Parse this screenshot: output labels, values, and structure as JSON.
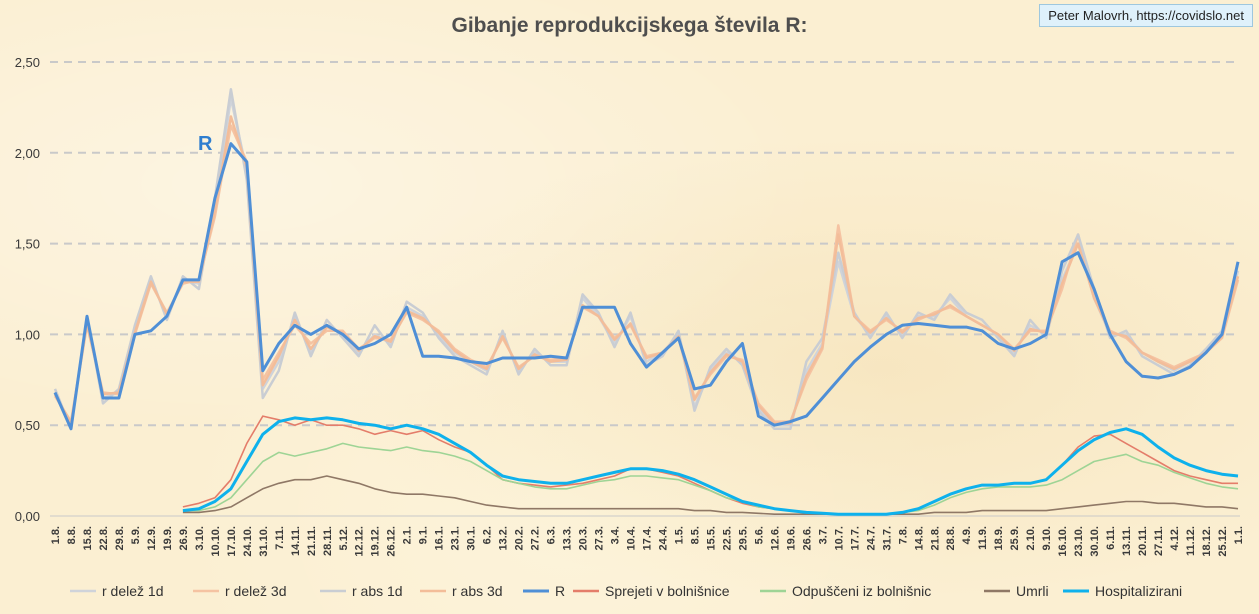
{
  "title": "Gibanje reprodukcijskega števila R:",
  "credit": "Peter Malovrh, https://covidslo.net",
  "colors": {
    "r_delez_1d": "#cfd3da",
    "r_delez_3d": "#f5c3a2",
    "r_abs_1d": "#c9cdd3",
    "r_abs_3d": "#f3bd99",
    "R": "#4f8fd6",
    "sprejeti": "#e47d6a",
    "odpusceni": "#9ed495",
    "umrli": "#8f7866",
    "hospitalizirani": "#0eb1ec"
  },
  "chart_data": {
    "type": "line",
    "title": "Gibanje reprodukcijskega števila R:",
    "ylim": [
      0,
      2.5
    ],
    "yticks": [
      "0,00",
      "0,50",
      "1,00",
      "1,50",
      "2,00",
      "2,50"
    ],
    "grid": "horizontal dashed",
    "legend_position": "bottom",
    "annotation": "R",
    "categories": [
      "1.8.",
      "8.8.",
      "15.8.",
      "22.8.",
      "29.8.",
      "5.9.",
      "12.9.",
      "19.9.",
      "26.9.",
      "3.10.",
      "10.10.",
      "17.10.",
      "24.10.",
      "31.10.",
      "7.11.",
      "14.11.",
      "21.11.",
      "28.11.",
      "5.12.",
      "12.12.",
      "19.12.",
      "26.12.",
      "2.1.",
      "9.1.",
      "16.1.",
      "23.1.",
      "30.1.",
      "6.2.",
      "13.2.",
      "20.2.",
      "27.2.",
      "6.3.",
      "13.3.",
      "20.3.",
      "27.3.",
      "3.4.",
      "10.4.",
      "17.4.",
      "24.4.",
      "1.5.",
      "8.5.",
      "15.5.",
      "22.5.",
      "29.5.",
      "5.6.",
      "12.6.",
      "19.6.",
      "26.6.",
      "3.7.",
      "10.7.",
      "17.7.",
      "24.7.",
      "31.7.",
      "7.8.",
      "14.8.",
      "21.8.",
      "28.8.",
      "4.9.",
      "11.9.",
      "18.9.",
      "25.9.",
      "2.10.",
      "9.10.",
      "16.10.",
      "23.10.",
      "30.10.",
      "6.11.",
      "13.11.",
      "20.11.",
      "27.11.",
      "4.12.",
      "11.12.",
      "18.12.",
      "25.12.",
      "1.1."
    ],
    "series": [
      {
        "name": "r delež 1d",
        "key": "r_delez_1d",
        "values": [
          0.68,
          0.5,
          1.08,
          0.65,
          0.68,
          1.02,
          1.3,
          1.1,
          1.3,
          1.28,
          1.7,
          2.3,
          1.9,
          0.7,
          0.85,
          1.1,
          0.9,
          1.05,
          1.0,
          0.9,
          1.0,
          0.95,
          1.15,
          1.1,
          1.0,
          0.9,
          0.85,
          0.8,
          1.0,
          0.8,
          0.9,
          0.85,
          0.85,
          1.2,
          1.1,
          0.95,
          1.1,
          0.85,
          0.9,
          1.0,
          0.6,
          0.8,
          0.9,
          0.85,
          0.6,
          0.5,
          0.5,
          0.8,
          0.95,
          1.4,
          1.1,
          1.0,
          1.1,
          1.0,
          1.1,
          1.1,
          1.2,
          1.1,
          1.05,
          1.0,
          0.9,
          1.05,
          1.0,
          1.3,
          1.5,
          1.2,
          1.0,
          1.0,
          0.9,
          0.85,
          0.8,
          0.85,
          0.9,
          1.0,
          1.35
        ]
      },
      {
        "name": "r delež 3d",
        "key": "r_delez_3d",
        "values": [
          0.66,
          0.52,
          1.05,
          0.68,
          0.67,
          1.0,
          1.28,
          1.12,
          1.28,
          1.3,
          1.65,
          2.15,
          1.95,
          0.75,
          0.9,
          1.05,
          0.95,
          1.02,
          1.02,
          0.92,
          0.98,
          0.97,
          1.12,
          1.08,
          1.02,
          0.92,
          0.86,
          0.82,
          0.98,
          0.82,
          0.88,
          0.86,
          0.87,
          1.15,
          1.1,
          0.98,
          1.05,
          0.88,
          0.9,
          0.98,
          0.65,
          0.78,
          0.88,
          0.86,
          0.62,
          0.52,
          0.52,
          0.75,
          0.92,
          1.6,
          1.1,
          1.02,
          1.08,
          1.02,
          1.08,
          1.12,
          1.15,
          1.1,
          1.05,
          1.0,
          0.92,
          1.02,
          1.02,
          1.25,
          1.55,
          1.2,
          1.02,
          0.98,
          0.9,
          0.86,
          0.82,
          0.86,
          0.9,
          0.98,
          1.3
        ]
      },
      {
        "name": "r abs 1d",
        "key": "r_abs_1d",
        "values": [
          0.7,
          0.48,
          1.1,
          0.62,
          0.7,
          1.05,
          1.32,
          1.08,
          1.32,
          1.25,
          1.75,
          2.35,
          1.85,
          0.65,
          0.8,
          1.12,
          0.88,
          1.08,
          0.98,
          0.88,
          1.05,
          0.93,
          1.18,
          1.12,
          0.98,
          0.88,
          0.83,
          0.78,
          1.02,
          0.78,
          0.92,
          0.83,
          0.83,
          1.22,
          1.12,
          0.93,
          1.12,
          0.83,
          0.88,
          1.02,
          0.58,
          0.82,
          0.92,
          0.83,
          0.58,
          0.48,
          0.48,
          0.85,
          0.98,
          1.45,
          1.12,
          0.98,
          1.12,
          0.98,
          1.12,
          1.08,
          1.22,
          1.12,
          1.08,
          0.98,
          0.88,
          1.08,
          0.98,
          1.35,
          1.55,
          1.25,
          0.98,
          1.02,
          0.88,
          0.83,
          0.78,
          0.83,
          0.92,
          1.02,
          1.4
        ]
      },
      {
        "name": "r abs 3d",
        "key": "r_abs_3d",
        "values": [
          0.67,
          0.51,
          1.06,
          0.67,
          0.68,
          1.01,
          1.29,
          1.11,
          1.29,
          1.29,
          1.68,
          2.2,
          1.92,
          0.72,
          0.88,
          1.08,
          0.92,
          1.04,
          1.01,
          0.91,
          0.99,
          0.96,
          1.13,
          1.09,
          1.01,
          0.91,
          0.85,
          0.81,
          0.99,
          0.81,
          0.89,
          0.85,
          0.86,
          1.16,
          1.1,
          0.97,
          1.06,
          0.87,
          0.9,
          0.99,
          0.64,
          0.79,
          0.89,
          0.85,
          0.61,
          0.51,
          0.51,
          0.77,
          0.93,
          1.55,
          1.1,
          1.01,
          1.09,
          1.01,
          1.09,
          1.11,
          1.16,
          1.1,
          1.05,
          1.0,
          0.91,
          1.03,
          1.01,
          1.28,
          1.5,
          1.2,
          1.01,
          0.99,
          0.9,
          0.85,
          0.81,
          0.85,
          0.9,
          0.99,
          1.32
        ]
      },
      {
        "name": "R",
        "key": "R",
        "values": [
          0.68,
          0.48,
          1.1,
          0.65,
          0.65,
          1.0,
          1.02,
          1.1,
          1.3,
          1.3,
          1.75,
          2.05,
          1.95,
          0.8,
          0.95,
          1.05,
          1.0,
          1.05,
          1.0,
          0.92,
          0.95,
          1.0,
          1.15,
          0.88,
          0.88,
          0.87,
          0.85,
          0.84,
          0.87,
          0.87,
          0.87,
          0.88,
          0.87,
          1.15,
          1.15,
          1.15,
          0.95,
          0.82,
          0.9,
          0.98,
          0.7,
          0.72,
          0.85,
          0.95,
          0.55,
          0.5,
          0.52,
          0.55,
          0.65,
          0.75,
          0.85,
          0.93,
          1.0,
          1.05,
          1.06,
          1.05,
          1.04,
          1.04,
          1.02,
          0.95,
          0.92,
          0.95,
          1.0,
          1.4,
          1.45,
          1.25,
          1.0,
          0.85,
          0.77,
          0.76,
          0.78,
          0.82,
          0.9,
          1.0,
          1.4
        ]
      },
      {
        "name": "Sprejeti v bolnišnice",
        "key": "sprejeti",
        "values": [
          null,
          null,
          null,
          null,
          null,
          null,
          null,
          null,
          0.05,
          0.07,
          0.1,
          0.2,
          0.4,
          0.55,
          0.53,
          0.5,
          0.53,
          0.5,
          0.5,
          0.48,
          0.45,
          0.47,
          0.45,
          0.47,
          0.42,
          0.38,
          0.35,
          0.28,
          0.2,
          0.18,
          0.17,
          0.16,
          0.17,
          0.18,
          0.2,
          0.22,
          0.26,
          0.26,
          0.24,
          0.22,
          0.18,
          0.14,
          0.1,
          0.07,
          0.05,
          0.04,
          0.03,
          0.02,
          0.015,
          0.01,
          0.01,
          0.01,
          0.01,
          0.02,
          0.04,
          0.08,
          0.12,
          0.15,
          0.17,
          0.17,
          0.18,
          0.18,
          0.2,
          0.28,
          0.38,
          0.44,
          0.45,
          0.4,
          0.35,
          0.3,
          0.25,
          0.22,
          0.2,
          0.18,
          0.18
        ]
      },
      {
        "name": "Odpuščeni iz bolnišnic",
        "key": "odpusceni",
        "values": [
          null,
          null,
          null,
          null,
          null,
          null,
          null,
          null,
          0.03,
          0.03,
          0.05,
          0.1,
          0.2,
          0.3,
          0.35,
          0.33,
          0.35,
          0.37,
          0.4,
          0.38,
          0.37,
          0.36,
          0.38,
          0.36,
          0.35,
          0.33,
          0.3,
          0.25,
          0.2,
          0.18,
          0.16,
          0.15,
          0.15,
          0.17,
          0.19,
          0.2,
          0.22,
          0.22,
          0.21,
          0.2,
          0.17,
          0.14,
          0.1,
          0.08,
          0.05,
          0.04,
          0.03,
          0.02,
          0.015,
          0.01,
          0.01,
          0.01,
          0.01,
          0.02,
          0.03,
          0.06,
          0.1,
          0.13,
          0.15,
          0.16,
          0.16,
          0.16,
          0.17,
          0.2,
          0.25,
          0.3,
          0.32,
          0.34,
          0.3,
          0.28,
          0.24,
          0.21,
          0.18,
          0.16,
          0.15
        ]
      },
      {
        "name": "Umrli",
        "key": "umrli",
        "values": [
          null,
          null,
          null,
          null,
          null,
          null,
          null,
          null,
          0.02,
          0.02,
          0.03,
          0.05,
          0.1,
          0.15,
          0.18,
          0.2,
          0.2,
          0.22,
          0.2,
          0.18,
          0.15,
          0.13,
          0.12,
          0.12,
          0.11,
          0.1,
          0.08,
          0.06,
          0.05,
          0.04,
          0.04,
          0.04,
          0.04,
          0.04,
          0.04,
          0.04,
          0.04,
          0.04,
          0.04,
          0.04,
          0.03,
          0.03,
          0.02,
          0.02,
          0.015,
          0.01,
          0.01,
          0.01,
          0.01,
          0.01,
          0.01,
          0.01,
          0.01,
          0.01,
          0.01,
          0.02,
          0.02,
          0.02,
          0.03,
          0.03,
          0.03,
          0.03,
          0.03,
          0.04,
          0.05,
          0.06,
          0.07,
          0.08,
          0.08,
          0.07,
          0.07,
          0.06,
          0.05,
          0.05,
          0.04
        ]
      },
      {
        "name": "Hospitalizirani",
        "key": "hospitalizirani",
        "values": [
          null,
          null,
          null,
          null,
          null,
          null,
          null,
          null,
          0.03,
          0.04,
          0.08,
          0.15,
          0.3,
          0.45,
          0.52,
          0.54,
          0.53,
          0.54,
          0.53,
          0.51,
          0.5,
          0.48,
          0.5,
          0.48,
          0.45,
          0.4,
          0.35,
          0.28,
          0.22,
          0.2,
          0.19,
          0.18,
          0.18,
          0.2,
          0.22,
          0.24,
          0.26,
          0.26,
          0.25,
          0.23,
          0.2,
          0.16,
          0.12,
          0.08,
          0.06,
          0.04,
          0.03,
          0.02,
          0.015,
          0.01,
          0.01,
          0.01,
          0.01,
          0.02,
          0.04,
          0.08,
          0.12,
          0.15,
          0.17,
          0.17,
          0.18,
          0.18,
          0.2,
          0.28,
          0.36,
          0.42,
          0.46,
          0.48,
          0.45,
          0.38,
          0.32,
          0.28,
          0.25,
          0.23,
          0.22
        ]
      }
    ]
  }
}
